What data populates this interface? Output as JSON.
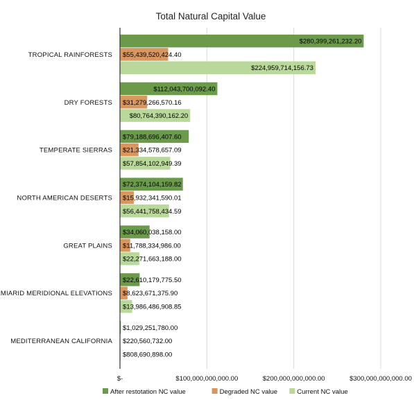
{
  "chart_data": {
    "type": "bar",
    "orientation": "horizontal",
    "title": "Total Natural Capital Value",
    "xlabel": "",
    "ylabel": "",
    "xlim": [
      0,
      300000000000
    ],
    "x_ticks": [
      0,
      100000000000,
      200000000000,
      300000000000
    ],
    "x_tick_labels": [
      "$-",
      "$100,000,000,000.00",
      "$200,000,000,000.00",
      "$300,000,000,000.00"
    ],
    "grid": "vertical",
    "legend_position": "bottom",
    "categories": [
      "TROPICAL RAINFORESTS",
      "DRY FORESTS",
      "TEMPERATE SIERRAS",
      "NORTH AMERICAN DESERTS",
      "GREAT PLAINS",
      "SEMIARID MERIDIONAL ELEVATIONS",
      "MEDITERRANEAN CALIFORNIA"
    ],
    "series": [
      {
        "name": "After restotation NC value",
        "color": "#6a9a4a",
        "values": [
          280399261232.2,
          112043700092.4,
          79188696407.6,
          72374104159.82,
          34060038158.0,
          22610179775.5,
          1029251780.0
        ],
        "labels": [
          "$280,399,261,232.20",
          "$112,043,700,092.40",
          "$79,188,696,407.60",
          "$72,374,104,159.82",
          "$34,060,038,158.00",
          "$22,610,179,775.50",
          "$1,029,251,780.00"
        ]
      },
      {
        "name": "Degraded NC value",
        "color": "#d9975f",
        "values": [
          55439520424.4,
          31279266570.16,
          21334578657.09,
          15932341590.01,
          11788334986.0,
          8623671375.9,
          220560732.0
        ],
        "labels": [
          "$55,439,520,424.40",
          "$31,279,266,570.16",
          "$21,334,578,657.09",
          "$15,932,341,590.01",
          "$11,788,334,986.00",
          "$8,623,671,375.90",
          "$220,560,732.00"
        ]
      },
      {
        "name": "Current NC value",
        "color": "#b8d99a",
        "values": [
          224959714156.73,
          80764390162.2,
          57854102949.39,
          56441758434.59,
          22271663188.0,
          13986486908.85,
          808690898.0
        ],
        "labels": [
          "$224,959,714,156.73",
          "$80,764,390,162.20",
          "$57,854,102,949.39",
          "$56,441,758,434.59",
          "$22,271,663,188.00",
          "$13,986,486,908.85",
          "$808,690,898.00"
        ]
      }
    ]
  }
}
